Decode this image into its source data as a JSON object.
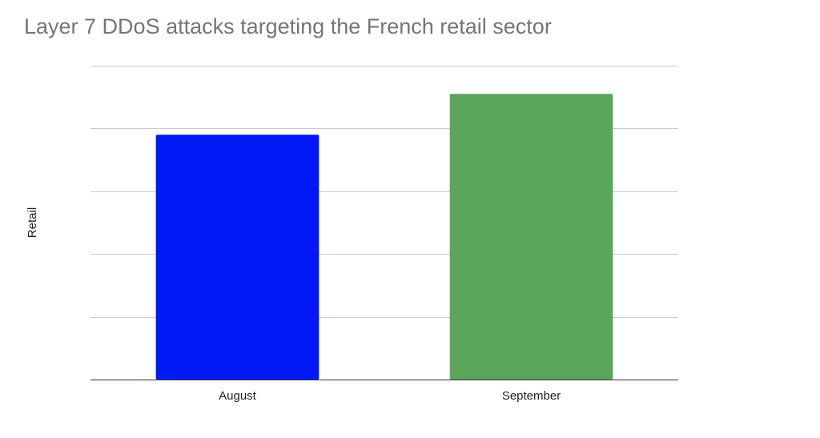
{
  "chart_data": {
    "type": "bar",
    "title": "Layer 7 DDoS attacks targeting the French retail sector",
    "xlabel": "",
    "ylabel": "Retail",
    "categories": [
      "August",
      "September"
    ],
    "values": [
      78,
      91
    ],
    "ylim": [
      0,
      100
    ],
    "colors": [
      "#0019f5",
      "#5aa65a"
    ],
    "grid": true,
    "y_tick_labels_shown": false,
    "legend": "none"
  }
}
